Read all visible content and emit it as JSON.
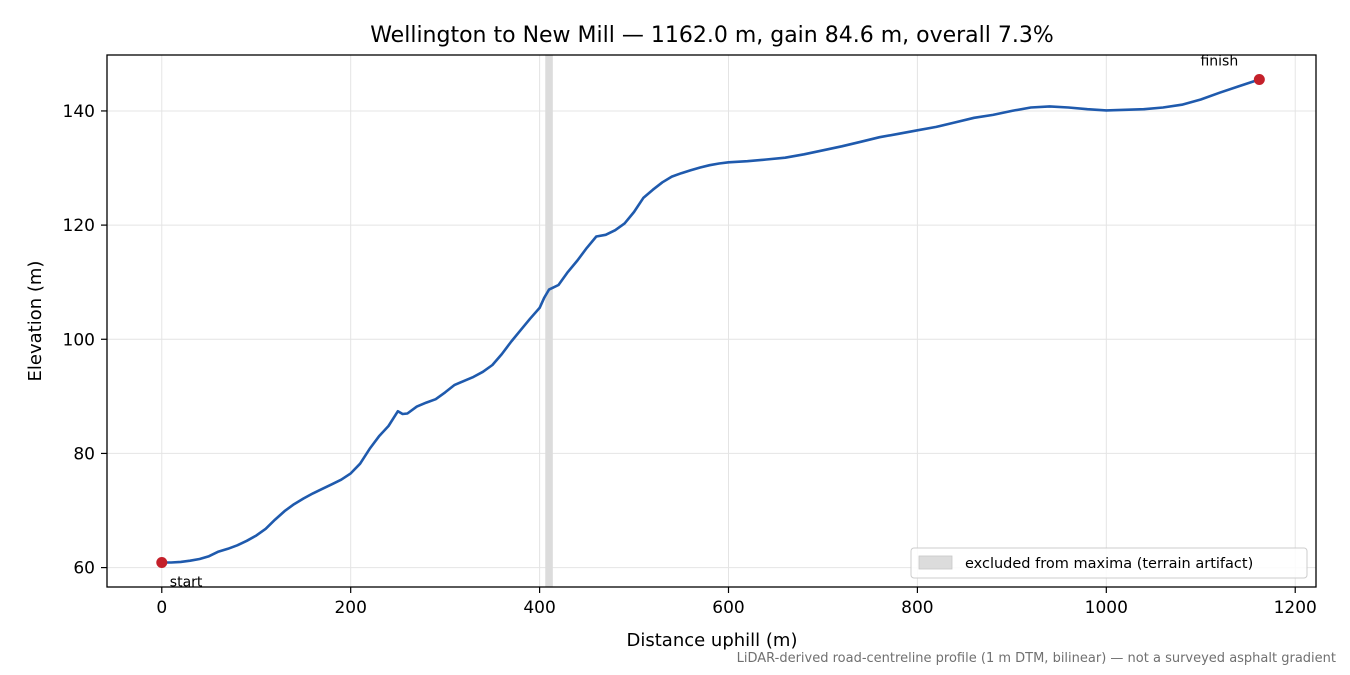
{
  "chart_data": {
    "type": "line",
    "title": "Wellington to New Mill — 1162.0 m, gain 84.6 m, overall 7.3%",
    "xlabel": "Distance uphill (m)",
    "ylabel": "Elevation (m)",
    "xlim": [
      -58,
      1222
    ],
    "ylim": [
      56.6,
      149.8
    ],
    "xticks": [
      0,
      200,
      400,
      600,
      800,
      1000,
      1200
    ],
    "yticks": [
      60,
      80,
      100,
      120,
      140
    ],
    "grid": true,
    "line_color": "#1f5aad",
    "marker_color": "#c4202a",
    "band_color": "#dcdcdc",
    "series": [
      {
        "x": [
          0,
          10,
          20,
          30,
          40,
          50,
          60,
          70,
          80,
          90,
          100,
          110,
          120,
          130,
          140,
          150,
          160,
          170,
          180,
          190,
          200,
          210,
          220,
          230,
          240,
          250,
          255,
          260,
          270,
          280,
          290,
          300,
          310,
          320,
          330,
          340,
          350,
          360,
          370,
          380,
          390,
          400,
          405,
          410,
          420,
          430,
          440,
          450,
          460,
          470,
          480,
          490,
          500,
          510,
          520,
          530,
          540,
          550,
          560,
          570,
          580,
          590,
          600,
          620,
          640,
          660,
          680,
          700,
          720,
          740,
          760,
          780,
          800,
          820,
          840,
          860,
          880,
          900,
          920,
          940,
          960,
          980,
          1000,
          1020,
          1040,
          1060,
          1080,
          1100,
          1120,
          1140,
          1162
        ],
        "y": [
          60.9,
          60.9,
          61.0,
          61.2,
          61.5,
          62.0,
          62.8,
          63.3,
          63.9,
          64.7,
          65.6,
          66.8,
          68.4,
          69.9,
          71.1,
          72.1,
          73.0,
          73.8,
          74.6,
          75.4,
          76.5,
          78.2,
          80.8,
          83.0,
          84.8,
          87.4,
          86.9,
          87.0,
          88.2,
          88.9,
          89.5,
          90.7,
          92.0,
          92.7,
          93.4,
          94.3,
          95.5,
          97.4,
          99.6,
          101.6,
          103.6,
          105.5,
          107.3,
          108.7,
          109.5,
          111.8,
          113.8,
          116.0,
          118.0,
          118.3,
          119.1,
          120.3,
          122.3,
          124.8,
          126.2,
          127.5,
          128.5,
          129.1,
          129.6,
          130.1,
          130.5,
          130.8,
          131.0,
          131.2,
          131.5,
          131.8,
          132.4,
          133.1,
          133.8,
          134.6,
          135.4,
          136.0,
          136.6,
          137.2,
          138.0,
          138.8,
          139.3,
          140.0,
          140.6,
          140.8,
          140.6,
          140.3,
          140.1,
          140.2,
          140.3,
          140.6,
          141.1,
          142.0,
          143.2,
          144.3,
          145.5
        ]
      }
    ],
    "markers": [
      {
        "label": "start",
        "x": 0,
        "y": 60.9
      },
      {
        "label": "finish",
        "x": 1162,
        "y": 145.5
      }
    ],
    "excluded_band": [
      406,
      414
    ],
    "legend": {
      "label": "excluded from maxima (terrain artifact)",
      "placement": "lower-right"
    },
    "footnote": "LiDAR-derived road-centreline profile (1 m DTM, bilinear) — not a surveyed asphalt gradient"
  }
}
